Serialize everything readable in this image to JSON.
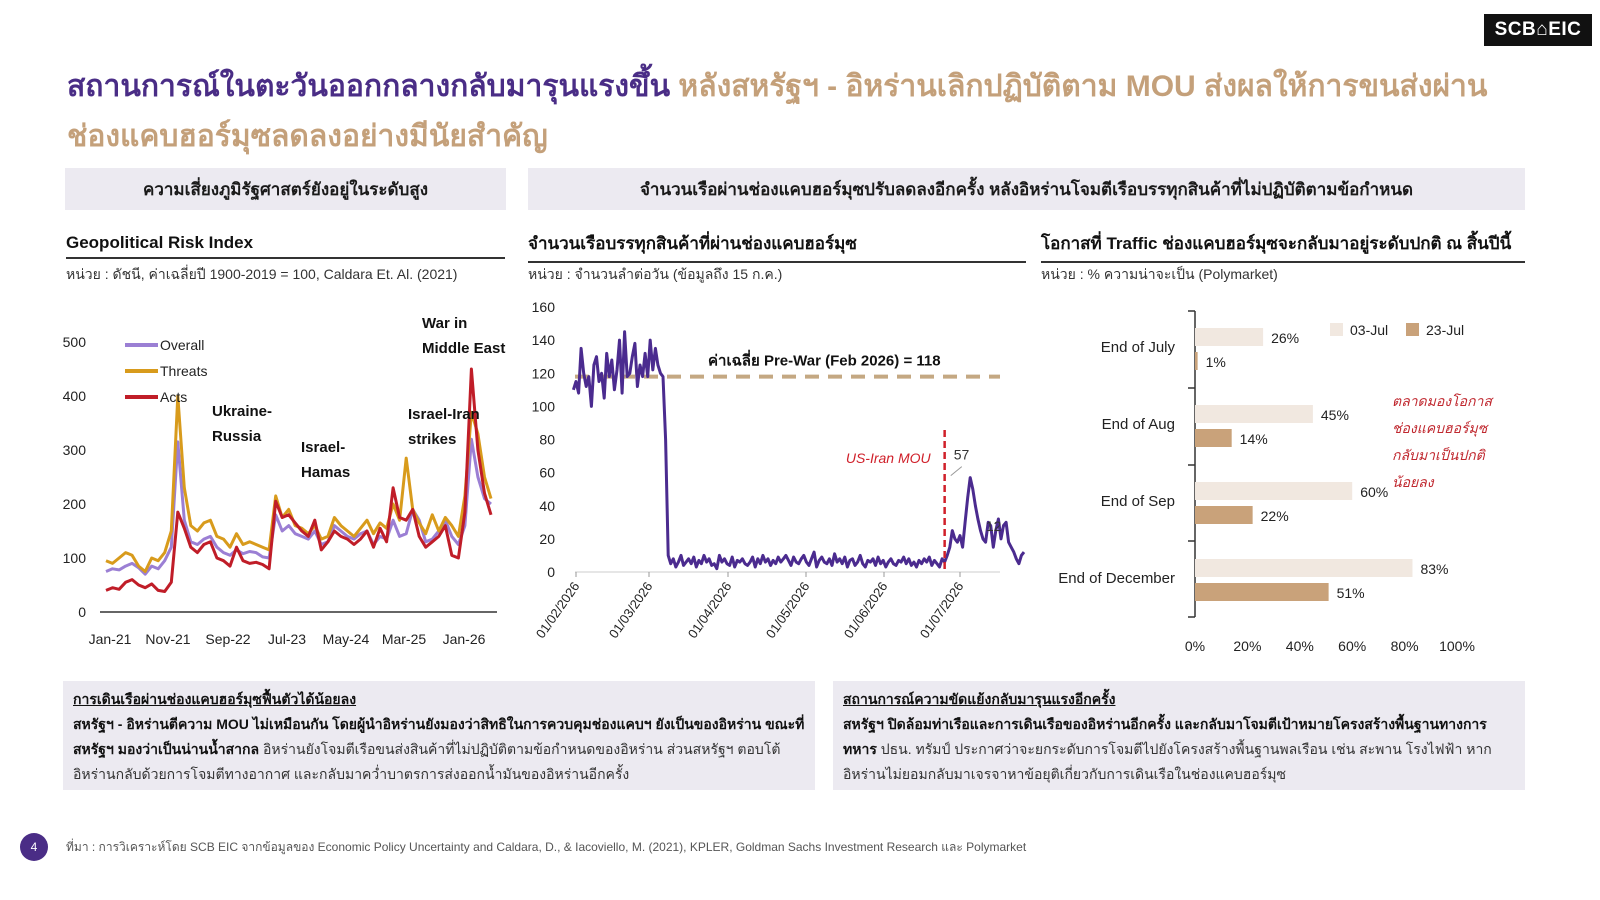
{
  "logo": "SCB⌂EIC",
  "title": {
    "part1": "สถานการณ์ในตะวันออกกลางกลับมารุนแรงขึ้น",
    "part2": "หลังสหรัฐฯ - อิหร่านเลิกปฏิบัติตาม MOU ส่งผลให้การขนส่งผ่านช่องแคบฮอร์มุซลดลงอย่างมีนัยสำคัญ"
  },
  "left_band": "ความเสี่ยงภูมิรัฐศาสตร์ยังอยู่ในระดับสูง",
  "right_band": "จำนวนเรือผ่านช่องแคบฮอร์มุซปรับลดลงอีกครั้ง หลังอิหร่านโจมตีเรือบรรทุกสินค้าที่ไม่ปฏิบัติตามข้อกำหนด",
  "panel1": {
    "title": "Geopolitical Risk Index",
    "unit": "หน่วย : ดัชนี, ค่าเฉลี่ยปี 1900-2019 = 100, Caldara Et. Al. (2021)"
  },
  "panel2": {
    "title": "จำนวนเรือบรรทุกสินค้าที่ผ่านช่องแคบฮอร์มุซ",
    "unit": "หน่วย : จำนวนลำต่อวัน (ข้อมูลถึง 15 ก.ค.)"
  },
  "panel3": {
    "title": "โอกาสที่ Traffic ช่องแคบฮอร์มุซจะกลับมาอยู่ระดับปกติ ณ สิ้นปีนี้",
    "unit": "หน่วย : % ความน่าจะเป็น (Polymarket)"
  },
  "chart_data": [
    {
      "type": "line",
      "title": "Geopolitical Risk Index",
      "x_ticks": [
        "Jan-21",
        "Nov-21",
        "Sep-22",
        "Jul-23",
        "May-24",
        "Mar-25",
        "Jan-26"
      ],
      "y_ticks": [
        0,
        100,
        200,
        300,
        400,
        500
      ],
      "ylim": [
        0,
        500
      ],
      "legend": "top-left",
      "annotations": [
        {
          "text": "Ukraine-Russia",
          "lines": [
            "Ukraine-",
            "Russia"
          ]
        },
        {
          "text": "Israel-Hamas",
          "lines": [
            "Israel-",
            "Hamas"
          ]
        },
        {
          "text": "Israel-Iran strikes",
          "lines": [
            "Israel-Iran",
            "strikes"
          ]
        },
        {
          "text": "War in Middle East",
          "lines": [
            "War in",
            "Middle East"
          ]
        }
      ],
      "series": [
        {
          "name": "Overall",
          "color": "#9b7fd4",
          "values": [
            75,
            80,
            78,
            85,
            90,
            82,
            70,
            85,
            80,
            95,
            120,
            315,
            170,
            130,
            125,
            135,
            140,
            120,
            110,
            105,
            115,
            108,
            112,
            110,
            102,
            100,
            180,
            150,
            160,
            145,
            140,
            135,
            150,
            125,
            130,
            160,
            150,
            140,
            135,
            145,
            150,
            125,
            140,
            135,
            170,
            140,
            145,
            190,
            170,
            130,
            135,
            150,
            170,
            140,
            125,
            160,
            320,
            250,
            210,
            200
          ]
        },
        {
          "name": "Threats",
          "color": "#d89b1c",
          "values": [
            95,
            90,
            100,
            110,
            105,
            85,
            75,
            100,
            95,
            110,
            150,
            400,
            230,
            160,
            150,
            165,
            170,
            140,
            135,
            120,
            145,
            125,
            130,
            125,
            120,
            115,
            215,
            175,
            190,
            160,
            155,
            145,
            160,
            135,
            140,
            175,
            160,
            150,
            140,
            155,
            170,
            145,
            165,
            155,
            200,
            170,
            285,
            190,
            165,
            145,
            180,
            150,
            175,
            160,
            140,
            215,
            370,
            330,
            250,
            210
          ]
        },
        {
          "name": "Acts",
          "color": "#c01d28",
          "values": [
            40,
            45,
            42,
            55,
            60,
            50,
            45,
            52,
            40,
            38,
            55,
            185,
            155,
            120,
            110,
            125,
            130,
            100,
            95,
            85,
            120,
            95,
            90,
            92,
            88,
            80,
            205,
            175,
            180,
            165,
            150,
            140,
            170,
            115,
            130,
            150,
            140,
            135,
            125,
            135,
            150,
            120,
            155,
            130,
            230,
            175,
            170,
            190,
            140,
            120,
            130,
            140,
            160,
            105,
            100,
            185,
            450,
            300,
            220,
            180
          ]
        }
      ]
    },
    {
      "type": "line",
      "title": "จำนวนเรือบรรทุกสินค้าที่ผ่านช่องแคบฮอร์มุซ",
      "x_ticks": [
        "01/02/2026",
        "01/03/2026",
        "01/04/2026",
        "01/05/2026",
        "01/06/2026",
        "01/07/2026"
      ],
      "y_ticks": [
        0,
        20,
        40,
        60,
        80,
        100,
        120,
        140,
        160
      ],
      "ylim": [
        0,
        160
      ],
      "reference_line": {
        "label": "ค่าเฉลี่ย Pre-War (Feb 2026) = 118",
        "value": 118,
        "color": "#c4a882"
      },
      "event": {
        "label": "US-Iran MOU",
        "date": "2026-06-25",
        "color": "#d0202a"
      },
      "point_labels": [
        {
          "date": "2026-06-27",
          "value": 57,
          "text": "57"
        },
        {
          "date": "2026-07-15",
          "value": 12,
          "text": "12"
        }
      ],
      "series": [
        {
          "name": "",
          "color": "#4b2b8f",
          "start_date": "2026-01-31",
          "values": [
            110,
            115,
            108,
            135,
            120,
            112,
            118,
            100,
            125,
            130,
            115,
            120,
            105,
            132,
            118,
            128,
            110,
            122,
            140,
            108,
            145,
            118,
            120,
            130,
            138,
            112,
            125,
            118,
            132,
            118,
            140,
            122,
            135,
            125,
            120,
            118,
            80,
            10,
            5,
            8,
            3,
            6,
            10,
            4,
            6,
            8,
            5,
            9,
            3,
            7,
            5,
            10,
            6,
            8,
            4,
            5,
            2,
            10,
            6,
            8,
            5,
            4,
            9,
            3,
            7,
            6,
            8,
            5,
            4,
            6,
            9,
            3,
            8,
            5,
            10,
            6,
            8,
            4,
            7,
            5,
            9,
            6,
            8,
            10,
            7,
            4,
            9,
            6,
            5,
            8,
            10,
            6,
            4,
            8,
            12,
            3,
            7,
            9,
            6,
            5,
            8,
            4,
            11,
            6,
            8,
            5,
            9,
            3,
            7,
            8,
            4,
            6,
            10,
            5,
            3,
            7,
            6,
            8,
            4,
            9,
            5,
            7,
            3,
            6,
            8,
            5,
            4,
            7,
            6,
            9,
            5,
            8,
            4,
            6,
            3,
            7,
            5,
            8,
            6,
            9,
            4,
            7,
            5,
            3,
            8,
            6,
            10,
            15,
            25,
            20,
            18,
            22,
            15,
            30,
            45,
            57,
            50,
            40,
            32,
            25,
            20,
            18,
            30,
            28,
            15,
            25,
            32,
            20,
            28,
            30,
            18,
            15,
            12,
            8,
            5,
            10,
            12
          ]
        }
      ]
    },
    {
      "type": "bar",
      "title": "โอกาสที่ Traffic ช่องแคบฮอร์มุซจะกลับมาอยู่ระดับปกติ ณ สิ้นปีนี้",
      "orientation": "horizontal",
      "categories": [
        "End of July",
        "End of Aug",
        "End of Sep",
        "End of December"
      ],
      "x_ticks": [
        "0%",
        "20%",
        "40%",
        "60%",
        "80%",
        "100%"
      ],
      "xlim": [
        0,
        100
      ],
      "legend": "top-right",
      "annotation": [
        "ตลาดมองโอกาส",
        "ช่องแคบฮอร์มุซ",
        "กลับมาเป็นปกติ",
        "น้อยลง"
      ],
      "series": [
        {
          "name": "03-Jul",
          "color": "#f1e8e0",
          "values": [
            26,
            45,
            60,
            83
          ]
        },
        {
          "name": "23-Jul",
          "color": "#c9a27a",
          "values": [
            1,
            14,
            22,
            51
          ]
        }
      ]
    }
  ],
  "box_left": {
    "heading": "การเดินเรือผ่านช่องแคบฮอร์มุซฟื้นตัวได้น้อยลง",
    "bold": "สหรัฐฯ - อิหร่านตีความ MOU ไม่เหมือนกัน โดยผู้นำอิหร่านยังมองว่าสิทธิในการควบคุมช่องแคบฯ ยังเป็นของอิหร่าน ขณะที่สหรัฐฯ มองว่าเป็นน่านน้ำสากล",
    "text": " อิหร่านยังโจมตีเรือขนส่งสินค้าที่ไม่ปฏิบัติตามข้อกำหนดของอิหร่าน ส่วนสหรัฐฯ ตอบโต้อิหร่านกลับด้วยการโจมตีทางอากาศ และกลับมาคว่ำบาตรการส่งออกน้ำมันของอิหร่านอีกครั้ง"
  },
  "box_right": {
    "heading": "สถานการณ์ความขัดแย้งกลับมารุนแรงอีกครั้ง",
    "bold": "สหรัฐฯ ปิดล้อมท่าเรือและการเดินเรือของอิหร่านอีกครั้ง และกลับมาโจมตีเป้าหมายโครงสร้างพื้นฐานทางการทหาร",
    "text": " ปธน. ทรัมป์ ประกาศว่าจะยกระดับการโจมตีไปยังโครงสร้างพื้นฐานพลเรือน เช่น สะพาน โรงไฟฟ้า หากอิหร่านไม่ยอมกลับมาเจรจาหาข้อยุติเกี่ยวกับการเดินเรือในช่องแคบฮอร์มุซ"
  },
  "page_number": "4",
  "source": "ที่มา : การวิเคราะห์โดย SCB EIC จากข้อมูลของ Economic Policy Uncertainty and Caldara, D., & Iacoviello, M. (2021), KPLER, Goldman Sachs Investment Research และ Polymarket"
}
